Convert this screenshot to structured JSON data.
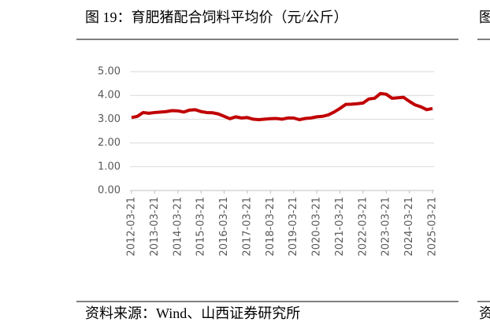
{
  "chart_data": {
    "type": "line",
    "title": "图 19：育肥猪配合饲料平均价（元/公斤）",
    "source": "资料来源：Wind、山西证券研究所",
    "categories": [
      "2012-03-21",
      null,
      null,
      null,
      "2013-03-21",
      null,
      null,
      null,
      "2014-03-21",
      null,
      null,
      null,
      "2015-03-21",
      null,
      null,
      null,
      "2016-03-21",
      null,
      null,
      null,
      "2017-03-21",
      null,
      null,
      null,
      "2018-03-21",
      null,
      null,
      null,
      "2019-03-21",
      null,
      null,
      null,
      "2020-03-21",
      null,
      null,
      null,
      "2021-03-21",
      null,
      null,
      null,
      "2022-03-21",
      null,
      null,
      null,
      "2023-03-21",
      null,
      null,
      null,
      "2024-03-21",
      null,
      null,
      null,
      "2025-03-21"
    ],
    "series": [
      {
        "color": "#c00000",
        "values": [
          3.07,
          3.12,
          3.28,
          3.25,
          3.28,
          3.3,
          3.32,
          3.36,
          3.35,
          3.3,
          3.38,
          3.4,
          3.32,
          3.28,
          3.27,
          3.22,
          3.12,
          3.02,
          3.1,
          3.05,
          3.07,
          3.0,
          2.98,
          3.0,
          3.02,
          3.03,
          3.0,
          3.05,
          3.05,
          2.98,
          3.03,
          3.05,
          3.1,
          3.12,
          3.18,
          3.3,
          3.45,
          3.62,
          3.63,
          3.65,
          3.68,
          3.85,
          3.88,
          4.08,
          4.05,
          3.88,
          3.9,
          3.92,
          3.75,
          3.6,
          3.52,
          3.4,
          3.45
        ]
      }
    ],
    "ylim": [
      0,
      5
    ],
    "yticks": [
      {
        "value": 0,
        "label": "0.00"
      },
      {
        "value": 1,
        "label": "1.00"
      },
      {
        "value": 2,
        "label": "2.00"
      },
      {
        "value": 3,
        "label": "3.00"
      },
      {
        "value": 4,
        "label": "4.00"
      },
      {
        "value": 5,
        "label": "5.00"
      }
    ],
    "grid": true
  },
  "side_panel": {
    "title": "图",
    "source": "资"
  }
}
